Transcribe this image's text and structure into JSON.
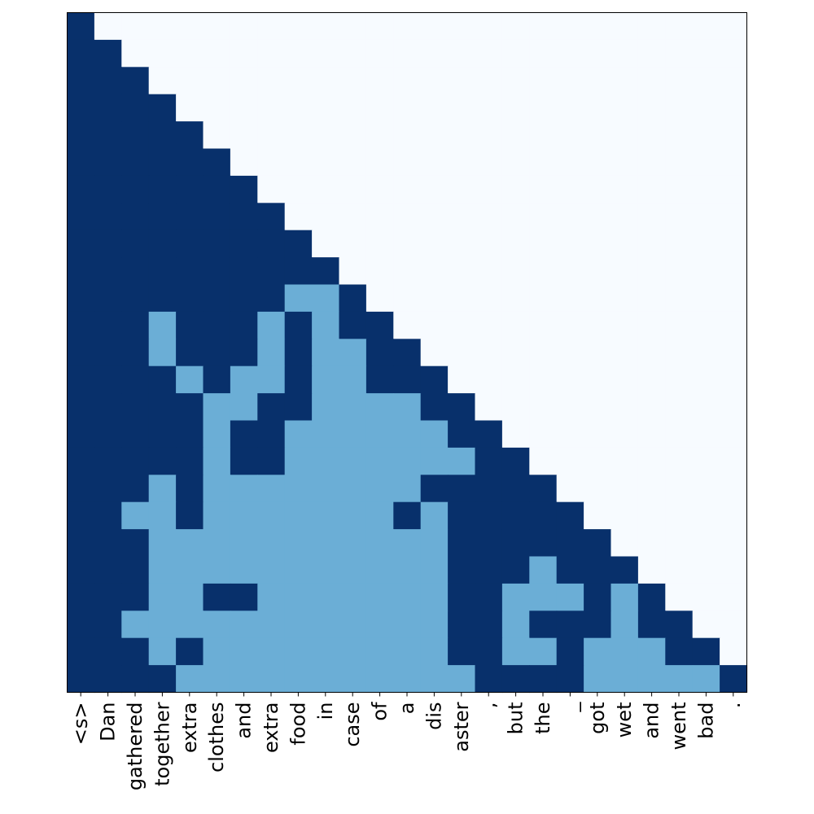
{
  "chart_data": {
    "type": "heatmap",
    "title": "",
    "xlabel": "",
    "ylabel": "",
    "x_tick_labels": [
      "<s>",
      "Dan",
      "gathered",
      "together",
      "extra",
      "clothes",
      "and",
      "extra",
      "food",
      "in",
      "case",
      "of",
      "a",
      "dis",
      "aster",
      ",",
      "but",
      "the",
      "_",
      "got",
      "wet",
      "and",
      "went",
      "bad",
      "."
    ],
    "y_tick_labels": [],
    "value_levels": {
      "0": "masked (upper triangle)",
      "1": "low",
      "2": "high"
    },
    "colors": {
      "0": "#f7fbff",
      "1": "#6baed6",
      "2": "#08306b"
    },
    "matrix": [
      [
        2,
        0,
        0,
        0,
        0,
        0,
        0,
        0,
        0,
        0,
        0,
        0,
        0,
        0,
        0,
        0,
        0,
        0,
        0,
        0,
        0,
        0,
        0,
        0,
        0
      ],
      [
        2,
        2,
        0,
        0,
        0,
        0,
        0,
        0,
        0,
        0,
        0,
        0,
        0,
        0,
        0,
        0,
        0,
        0,
        0,
        0,
        0,
        0,
        0,
        0,
        0
      ],
      [
        2,
        2,
        2,
        0,
        0,
        0,
        0,
        0,
        0,
        0,
        0,
        0,
        0,
        0,
        0,
        0,
        0,
        0,
        0,
        0,
        0,
        0,
        0,
        0,
        0
      ],
      [
        2,
        2,
        2,
        2,
        0,
        0,
        0,
        0,
        0,
        0,
        0,
        0,
        0,
        0,
        0,
        0,
        0,
        0,
        0,
        0,
        0,
        0,
        0,
        0,
        0
      ],
      [
        2,
        2,
        2,
        2,
        2,
        0,
        0,
        0,
        0,
        0,
        0,
        0,
        0,
        0,
        0,
        0,
        0,
        0,
        0,
        0,
        0,
        0,
        0,
        0,
        0
      ],
      [
        2,
        2,
        2,
        2,
        2,
        2,
        0,
        0,
        0,
        0,
        0,
        0,
        0,
        0,
        0,
        0,
        0,
        0,
        0,
        0,
        0,
        0,
        0,
        0,
        0
      ],
      [
        2,
        2,
        2,
        2,
        2,
        2,
        2,
        0,
        0,
        0,
        0,
        0,
        0,
        0,
        0,
        0,
        0,
        0,
        0,
        0,
        0,
        0,
        0,
        0,
        0
      ],
      [
        2,
        2,
        2,
        2,
        2,
        2,
        2,
        2,
        0,
        0,
        0,
        0,
        0,
        0,
        0,
        0,
        0,
        0,
        0,
        0,
        0,
        0,
        0,
        0,
        0
      ],
      [
        2,
        2,
        2,
        2,
        2,
        2,
        2,
        2,
        2,
        0,
        0,
        0,
        0,
        0,
        0,
        0,
        0,
        0,
        0,
        0,
        0,
        0,
        0,
        0,
        0
      ],
      [
        2,
        2,
        2,
        2,
        2,
        2,
        2,
        2,
        2,
        2,
        0,
        0,
        0,
        0,
        0,
        0,
        0,
        0,
        0,
        0,
        0,
        0,
        0,
        0,
        0
      ],
      [
        2,
        2,
        2,
        2,
        2,
        2,
        2,
        2,
        1,
        1,
        2,
        0,
        0,
        0,
        0,
        0,
        0,
        0,
        0,
        0,
        0,
        0,
        0,
        0,
        0
      ],
      [
        2,
        2,
        2,
        1,
        2,
        2,
        2,
        1,
        2,
        1,
        2,
        2,
        0,
        0,
        0,
        0,
        0,
        0,
        0,
        0,
        0,
        0,
        0,
        0,
        0
      ],
      [
        2,
        2,
        2,
        1,
        2,
        2,
        2,
        1,
        2,
        1,
        1,
        2,
        2,
        0,
        0,
        0,
        0,
        0,
        0,
        0,
        0,
        0,
        0,
        0,
        0
      ],
      [
        2,
        2,
        2,
        2,
        1,
        2,
        1,
        1,
        2,
        1,
        1,
        2,
        2,
        2,
        0,
        0,
        0,
        0,
        0,
        0,
        0,
        0,
        0,
        0,
        0
      ],
      [
        2,
        2,
        2,
        2,
        2,
        1,
        1,
        2,
        2,
        1,
        1,
        1,
        1,
        2,
        2,
        0,
        0,
        0,
        0,
        0,
        0,
        0,
        0,
        0,
        0
      ],
      [
        2,
        2,
        2,
        2,
        2,
        1,
        2,
        2,
        1,
        1,
        1,
        1,
        1,
        1,
        2,
        2,
        0,
        0,
        0,
        0,
        0,
        0,
        0,
        0,
        0
      ],
      [
        2,
        2,
        2,
        2,
        2,
        1,
        2,
        2,
        1,
        1,
        1,
        1,
        1,
        1,
        1,
        2,
        2,
        0,
        0,
        0,
        0,
        0,
        0,
        0,
        0
      ],
      [
        2,
        2,
        2,
        1,
        2,
        1,
        1,
        1,
        1,
        1,
        1,
        1,
        1,
        2,
        2,
        2,
        2,
        2,
        0,
        0,
        0,
        0,
        0,
        0,
        0
      ],
      [
        2,
        2,
        1,
        1,
        2,
        1,
        1,
        1,
        1,
        1,
        1,
        1,
        2,
        1,
        2,
        2,
        2,
        2,
        2,
        0,
        0,
        0,
        0,
        0,
        0
      ],
      [
        2,
        2,
        2,
        1,
        1,
        1,
        1,
        1,
        1,
        1,
        1,
        1,
        1,
        1,
        2,
        2,
        2,
        2,
        2,
        2,
        0,
        0,
        0,
        0,
        0
      ],
      [
        2,
        2,
        2,
        1,
        1,
        1,
        1,
        1,
        1,
        1,
        1,
        1,
        1,
        1,
        2,
        2,
        2,
        1,
        2,
        2,
        2,
        0,
        0,
        0,
        0
      ],
      [
        2,
        2,
        2,
        1,
        1,
        2,
        2,
        1,
        1,
        1,
        1,
        1,
        1,
        1,
        2,
        2,
        1,
        1,
        1,
        2,
        1,
        2,
        0,
        0,
        0
      ],
      [
        2,
        2,
        1,
        1,
        1,
        1,
        1,
        1,
        1,
        1,
        1,
        1,
        1,
        1,
        2,
        2,
        1,
        2,
        2,
        2,
        1,
        2,
        2,
        0,
        0
      ],
      [
        2,
        2,
        2,
        1,
        2,
        1,
        1,
        1,
        1,
        1,
        1,
        1,
        1,
        1,
        2,
        2,
        1,
        1,
        2,
        1,
        1,
        1,
        2,
        2,
        0
      ],
      [
        2,
        2,
        2,
        2,
        1,
        1,
        1,
        1,
        1,
        1,
        1,
        1,
        1,
        1,
        1,
        2,
        2,
        2,
        2,
        1,
        1,
        1,
        1,
        1,
        2
      ]
    ]
  }
}
